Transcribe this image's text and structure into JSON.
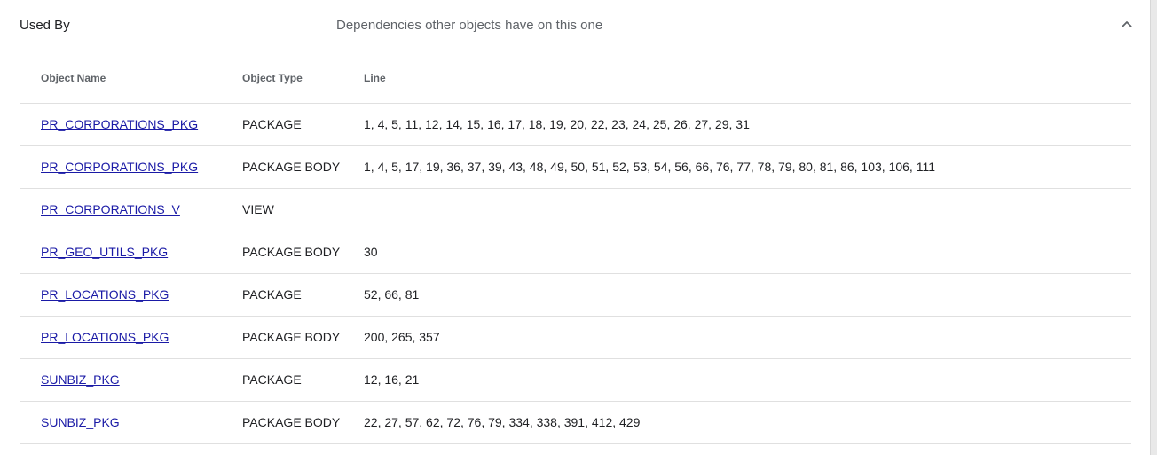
{
  "header": {
    "title": "Used By",
    "description": "Dependencies other objects have on this one",
    "collapse_icon": "chevron-up-icon"
  },
  "table": {
    "columns": [
      "Object Name",
      "Object Type",
      "Line"
    ],
    "rows": [
      {
        "name": "PR_CORPORATIONS_PKG",
        "type": "PACKAGE",
        "lines": "1, 4, 5, 11, 12, 14, 15, 16, 17, 18, 19, 20, 22, 23, 24, 25, 26, 27, 29, 31"
      },
      {
        "name": "PR_CORPORATIONS_PKG",
        "type": "PACKAGE BODY",
        "lines": "1, 4, 5, 17, 19, 36, 37, 39, 43, 48, 49, 50, 51, 52, 53, 54, 56, 66, 76, 77, 78, 79, 80, 81, 86, 103, 106, 111"
      },
      {
        "name": "PR_CORPORATIONS_V",
        "type": "VIEW",
        "lines": ""
      },
      {
        "name": "PR_GEO_UTILS_PKG",
        "type": "PACKAGE BODY",
        "lines": "30"
      },
      {
        "name": "PR_LOCATIONS_PKG",
        "type": "PACKAGE",
        "lines": "52, 66, 81"
      },
      {
        "name": "PR_LOCATIONS_PKG",
        "type": "PACKAGE BODY",
        "lines": "200, 265, 357"
      },
      {
        "name": "SUNBIZ_PKG",
        "type": "PACKAGE",
        "lines": "12, 16, 21"
      },
      {
        "name": "SUNBIZ_PKG",
        "type": "PACKAGE BODY",
        "lines": "22, 27, 57, 62, 72, 76, 79, 334, 338, 391, 412, 429"
      }
    ]
  },
  "colors": {
    "link": "#1a1aa6",
    "header_text": "#202124",
    "muted_text": "#5f6368",
    "divider": "#e0e0e0"
  }
}
